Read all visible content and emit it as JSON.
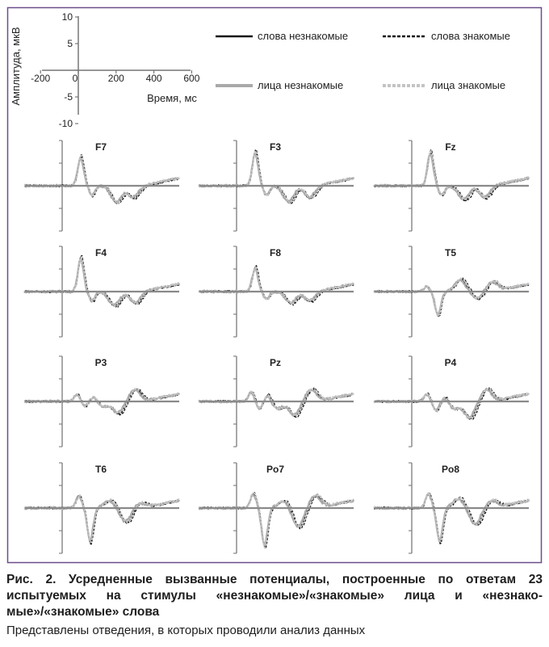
{
  "chart_data": {
    "type": "line",
    "axes_key": {
      "ylabel": "Амплитуда, мкВ",
      "xlabel": "Время, мс",
      "yticks": [
        10,
        5,
        0,
        -5,
        -10
      ],
      "xticks": [
        -200,
        0,
        200,
        400,
        600
      ],
      "xlim": [
        -250,
        620
      ],
      "ylim": [
        -10,
        10
      ]
    },
    "legend": [
      {
        "label": "слова незнакомые",
        "color": "#111111",
        "style": "solid"
      },
      {
        "label": "слова знакомые",
        "color": "#111111",
        "style": "dashed"
      },
      {
        "label": "лица незнакомые",
        "color": "#a9a9a9",
        "style": "solid"
      },
      {
        "label": "лица знакомые",
        "color": "#c4c4c4",
        "style": "dashed"
      }
    ],
    "series_colors": [
      "#111111",
      "#111111",
      "#a9a9a9",
      "#c4c4c4"
    ],
    "panels": [
      {
        "label": "F7",
        "components": [
          [
            100,
            6
          ],
          [
            160,
            -2
          ],
          [
            290,
            -3.5
          ],
          [
            380,
            -2.5
          ]
        ]
      },
      {
        "label": "F3",
        "components": [
          [
            100,
            7
          ],
          [
            160,
            -2
          ],
          [
            280,
            -3.5
          ],
          [
            390,
            -2.5
          ]
        ]
      },
      {
        "label": "Fz",
        "components": [
          [
            100,
            7
          ],
          [
            160,
            -2
          ],
          [
            280,
            -3
          ],
          [
            390,
            -2.5
          ]
        ]
      },
      {
        "label": "F4",
        "components": [
          [
            100,
            7
          ],
          [
            160,
            -2
          ],
          [
            280,
            -3
          ],
          [
            390,
            -2.5
          ]
        ]
      },
      {
        "label": "F8",
        "components": [
          [
            100,
            5
          ],
          [
            160,
            -1.5
          ],
          [
            290,
            -2.5
          ],
          [
            390,
            -2
          ]
        ]
      },
      {
        "label": "T5",
        "components": [
          [
            80,
            1
          ],
          [
            140,
            -5
          ],
          [
            260,
            2.5
          ],
          [
            350,
            -1.5
          ],
          [
            430,
            2
          ]
        ]
      },
      {
        "label": "P3",
        "components": [
          [
            80,
            1.5
          ],
          [
            120,
            -1
          ],
          [
            170,
            1
          ],
          [
            220,
            -1
          ],
          [
            300,
            -2.5
          ],
          [
            390,
            2.5
          ]
        ]
      },
      {
        "label": "Pz",
        "components": [
          [
            80,
            2
          ],
          [
            120,
            -1.5
          ],
          [
            170,
            1.5
          ],
          [
            220,
            -1.5
          ],
          [
            310,
            -3
          ],
          [
            400,
            2.5
          ]
        ]
      },
      {
        "label": "P4",
        "components": [
          [
            80,
            1.5
          ],
          [
            130,
            -2
          ],
          [
            180,
            1
          ],
          [
            230,
            -1.5
          ],
          [
            310,
            -3.5
          ],
          [
            400,
            2.5
          ]
        ]
      },
      {
        "label": "T6",
        "components": [
          [
            90,
            2.5
          ],
          [
            150,
            -7
          ],
          [
            250,
            1.5
          ],
          [
            340,
            -3
          ],
          [
            420,
            1
          ]
        ]
      },
      {
        "label": "Po7",
        "components": [
          [
            90,
            3
          ],
          [
            150,
            -8
          ],
          [
            250,
            1.5
          ],
          [
            330,
            -4
          ],
          [
            420,
            2.5
          ]
        ]
      },
      {
        "label": "Po8",
        "components": [
          [
            90,
            3
          ],
          [
            150,
            -7
          ],
          [
            250,
            2
          ],
          [
            340,
            -3.5
          ],
          [
            430,
            1.5
          ]
        ]
      }
    ]
  },
  "caption": {
    "title": "Рис. 2. Усредненные вызванные потенциалы, построенные по ответам 23 испытуемых на стимулы «незнакомые»/«знакомые» лица и «незнако-мые»/«знакомые» слова",
    "note": "Представлены отведения, в которых проводили анализ данных"
  }
}
